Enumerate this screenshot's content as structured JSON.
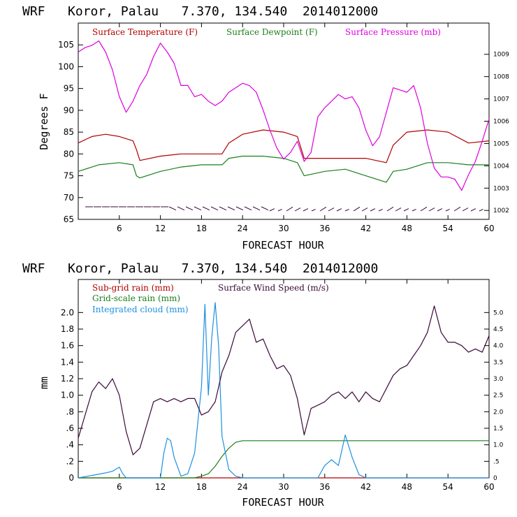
{
  "colors": {
    "temperature": "#b00000",
    "dewpoint": "#1a7f1a",
    "pressure": "#dd00dd",
    "subgrid_rain": "#b00000",
    "grid_rain": "#1a7f1a",
    "cloud": "#1e90e0",
    "wind": "#3a0a3a"
  },
  "chart_data": [
    {
      "type": "line",
      "title": "WRF   Koror, Palau   7.370, 134.540  2014012000",
      "xlabel": "FORECAST HOUR",
      "ylabel": "Degrees F",
      "xlim": [
        0,
        60
      ],
      "ylim": [
        65,
        110
      ],
      "y2lim": [
        1001.6,
        1010.4
      ],
      "x_ticks": [
        "6",
        "12",
        "18",
        "24",
        "30",
        "36",
        "42",
        "48",
        "54",
        "60"
      ],
      "y_ticks": [
        "65",
        "70",
        "75",
        "80",
        "85",
        "90",
        "95",
        "100",
        "105"
      ],
      "y2_ticks": [
        "1002",
        "1003",
        "1004",
        "1005",
        "1006",
        "1007",
        "1008",
        "1009"
      ],
      "legend": [
        "Surface Temperature (F)",
        "Surface Dewpoint (F)",
        "Surface Pressure (mb)"
      ],
      "series": [
        {
          "name": "Surface Temperature (F)",
          "axis": "left",
          "x": [
            0,
            2,
            4,
            6,
            8,
            8.5,
            9,
            12,
            15,
            18,
            21,
            22,
            24,
            27,
            30,
            32,
            33,
            36,
            39,
            42,
            45,
            46,
            48,
            51,
            54,
            57,
            60
          ],
          "y": [
            82.5,
            84,
            84.5,
            84,
            83,
            81,
            78.5,
            79.5,
            80,
            80,
            80,
            82.5,
            84.5,
            85.5,
            85,
            84,
            79,
            79,
            79,
            79,
            78,
            82,
            85,
            85.5,
            85,
            82.5,
            83
          ]
        },
        {
          "name": "Surface Dewpoint (F)",
          "axis": "left",
          "x": [
            0,
            3,
            6,
            8,
            8.5,
            9,
            12,
            15,
            18,
            21,
            22,
            24,
            27,
            30,
            32,
            33,
            36,
            39,
            42,
            45,
            46,
            48,
            51,
            54,
            57,
            60
          ],
          "y": [
            76,
            77.5,
            78,
            77.5,
            75,
            74.5,
            76,
            77,
            77.5,
            77.5,
            79,
            79.5,
            79.5,
            79,
            78,
            75,
            76,
            76.5,
            75,
            73.5,
            76,
            76.5,
            78,
            78,
            77.5,
            77.5
          ]
        },
        {
          "name": "Surface Pressure (mb)",
          "axis": "right",
          "x": [
            0,
            1,
            2,
            3,
            4,
            5,
            6,
            7,
            8,
            9,
            10,
            11,
            12,
            13,
            14,
            15,
            16,
            17,
            18,
            19,
            20,
            21,
            22,
            23,
            24,
            25,
            26,
            27,
            28,
            29,
            30,
            31,
            32,
            33,
            34,
            35,
            36,
            37,
            38,
            39,
            40,
            41,
            42,
            43,
            44,
            45,
            46,
            47,
            48,
            49,
            50,
            51,
            52,
            53,
            54,
            55,
            56,
            57,
            58,
            59,
            60
          ],
          "y": [
            1009.1,
            1009.3,
            1009.4,
            1009.6,
            1009.1,
            1008.3,
            1007.1,
            1006.4,
            1006.9,
            1007.6,
            1008.1,
            1008.9,
            1009.5,
            1009.1,
            1008.6,
            1007.6,
            1007.6,
            1007.1,
            1007.2,
            1006.9,
            1006.7,
            1006.9,
            1007.3,
            1007.5,
            1007.7,
            1007.6,
            1007.3,
            1006.5,
            1005.6,
            1004.8,
            1004.3,
            1004.6,
            1005.1,
            1004.2,
            1004.6,
            1006.2,
            1006.6,
            1006.9,
            1007.2,
            1007.0,
            1007.1,
            1006.6,
            1005.6,
            1004.9,
            1005.3,
            1006.4,
            1007.5,
            1007.4,
            1007.3,
            1007.6,
            1006.6,
            1005.0,
            1003.9,
            1003.5,
            1003.5,
            1003.4,
            1002.9,
            1003.6,
            1004.2,
            1005.1,
            1006.1
          ]
        }
      ]
    },
    {
      "type": "line",
      "title": "WRF   Koror, Palau   7.370, 134.540  2014012000",
      "xlabel": "FORECAST HOUR",
      "ylabel": "mm",
      "xlim": [
        0,
        60
      ],
      "ylim": [
        0,
        2.4
      ],
      "y2lim": [
        0,
        6
      ],
      "x_ticks": [
        "6",
        "12",
        "18",
        "24",
        "30",
        "36",
        "42",
        "48",
        "54",
        "60"
      ],
      "y_ticks": [
        "0",
        ".2",
        ".4",
        ".6",
        ".8",
        "1.0",
        "1.2",
        "1.4",
        "1.6",
        "1.8",
        "2.0"
      ],
      "y2_ticks": [
        "0",
        ".5",
        "1.0",
        "1.5",
        "2.0",
        "2.5",
        "3.0",
        "3.5",
        "4.0",
        "4.5",
        "5.0"
      ],
      "legend": [
        "Sub-grid rain (mm)",
        "Surface Wind Speed (m/s)",
        "Grid-scale rain (mm)",
        "Integrated cloud (mm)"
      ],
      "series": [
        {
          "name": "Sub-grid rain (mm)",
          "axis": "left",
          "x": [
            0,
            60
          ],
          "y": [
            0,
            0
          ]
        },
        {
          "name": "Grid-scale rain (mm)",
          "axis": "left",
          "x": [
            0,
            17,
            18,
            19,
            20,
            21,
            22,
            23,
            24,
            30,
            36,
            42,
            48,
            54,
            60
          ],
          "y": [
            0,
            0,
            0.02,
            0.05,
            0.14,
            0.26,
            0.36,
            0.43,
            0.45,
            0.45,
            0.45,
            0.45,
            0.45,
            0.45,
            0.45
          ]
        },
        {
          "name": "Integrated cloud (mm)",
          "axis": "left",
          "x": [
            0,
            2,
            4,
            5,
            6,
            6.5,
            7,
            12,
            12.5,
            13,
            13.5,
            14,
            15,
            16,
            17,
            18,
            18.5,
            19,
            19.5,
            20,
            20.5,
            21,
            22,
            23,
            24,
            35,
            36,
            37,
            38,
            39,
            40,
            41,
            42,
            60
          ],
          "y": [
            0,
            0.03,
            0.06,
            0.08,
            0.13,
            0.05,
            0,
            0,
            0.3,
            0.48,
            0.45,
            0.25,
            0.02,
            0.05,
            0.3,
            1.1,
            2.1,
            1.0,
            1.7,
            2.12,
            1.6,
            0.5,
            0.1,
            0.02,
            0,
            0,
            0.15,
            0.22,
            0.15,
            0.52,
            0.25,
            0.04,
            0,
            0
          ]
        },
        {
          "name": "Surface Wind Speed (m/s)",
          "axis": "right",
          "x": [
            0,
            1,
            2,
            3,
            4,
            5,
            6,
            7,
            8,
            9,
            10,
            11,
            12,
            13,
            14,
            15,
            16,
            17,
            18,
            19,
            20,
            21,
            22,
            23,
            24,
            25,
            26,
            27,
            28,
            29,
            30,
            31,
            32,
            33,
            34,
            35,
            36,
            37,
            38,
            39,
            40,
            41,
            42,
            43,
            44,
            45,
            46,
            47,
            48,
            49,
            50,
            51,
            52,
            53,
            54,
            55,
            56,
            57,
            58,
            59,
            60
          ],
          "y": [
            1.2,
            1.9,
            2.6,
            2.9,
            2.7,
            3.0,
            2.5,
            1.4,
            0.7,
            0.9,
            1.6,
            2.3,
            2.4,
            2.3,
            2.4,
            2.3,
            2.4,
            2.4,
            1.9,
            2.0,
            2.3,
            3.2,
            3.7,
            4.4,
            4.6,
            4.8,
            4.1,
            4.2,
            3.7,
            3.3,
            3.4,
            3.1,
            2.4,
            1.3,
            2.1,
            2.2,
            2.3,
            2.5,
            2.6,
            2.4,
            2.6,
            2.3,
            2.6,
            2.4,
            2.3,
            2.7,
            3.1,
            3.3,
            3.4,
            3.7,
            4.0,
            4.4,
            5.2,
            4.4,
            4.1,
            4.1,
            4.0,
            3.8,
            3.9,
            3.8,
            4.3
          ]
        }
      ]
    }
  ]
}
